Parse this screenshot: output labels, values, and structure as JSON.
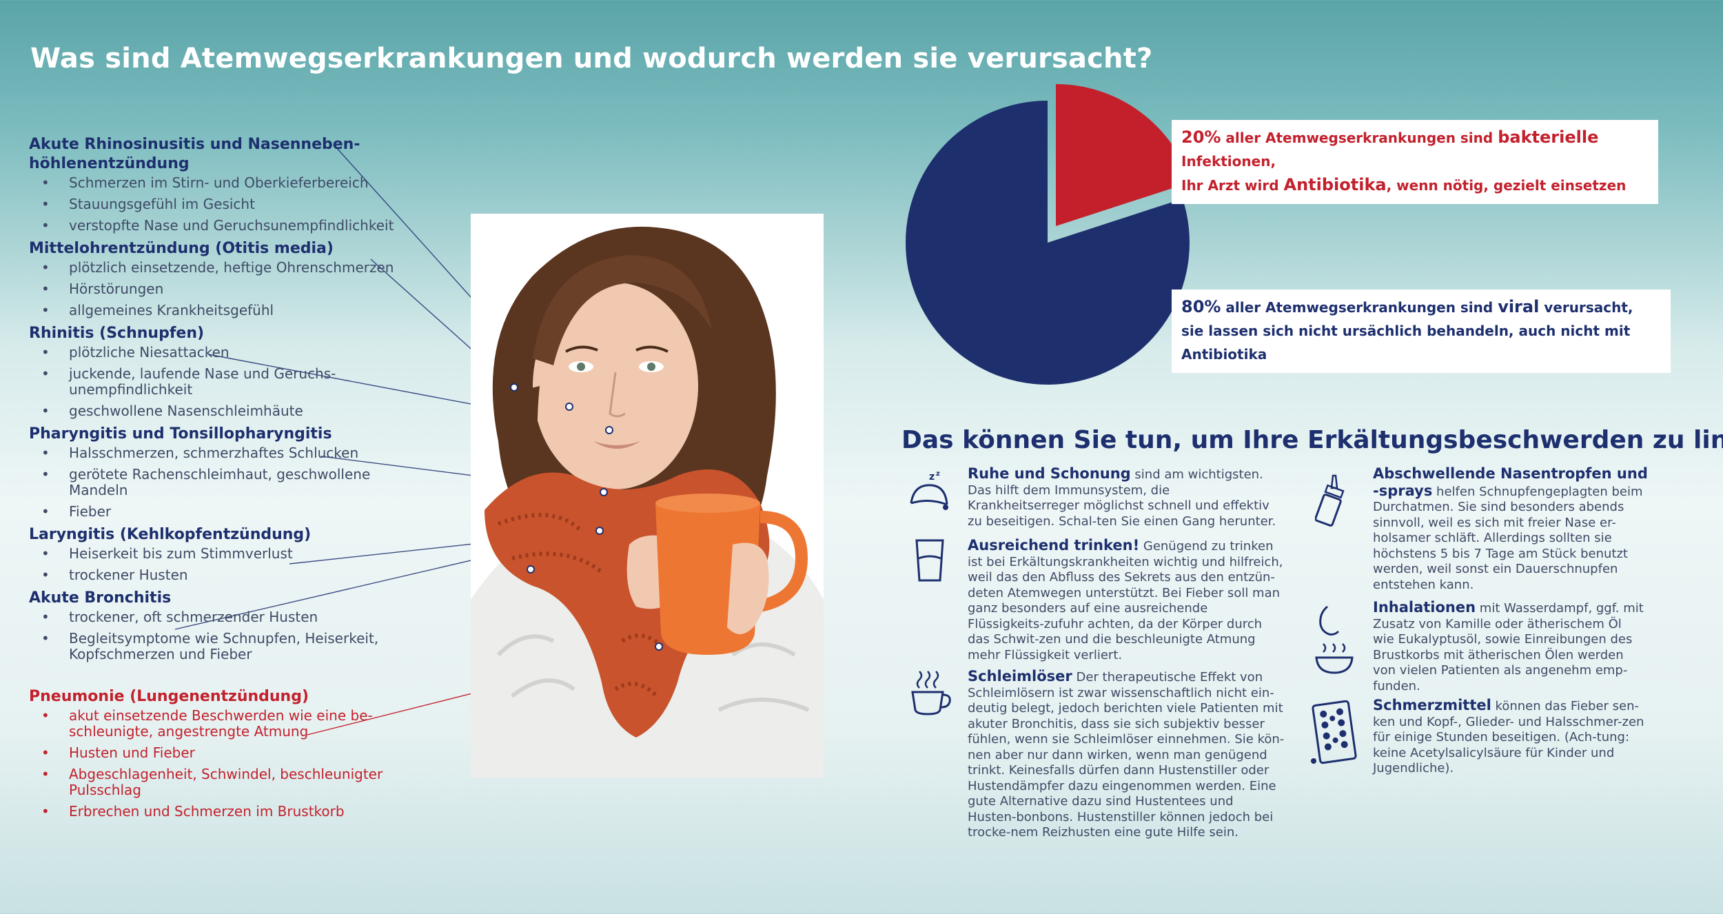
{
  "title": "Was sind Atemwegserkrankungen und wodurch werden sie verursacht?",
  "conditions": [
    {
      "title": "Akute Rhinosinusitis und Nasenneben-\nhöhlenentzündung",
      "items": [
        "Schmerzen im Stirn- und Oberkieferbereich",
        "Stauungsgefühl im Gesicht",
        "verstopfte Nase und Geruchsunempfindlichkeit"
      ]
    },
    {
      "title": "Mittelohrentzündung (Otitis media)",
      "items": [
        "plötzlich einsetzende, heftige Ohrenschmerzen",
        "Hörstörungen",
        "allgemeines Krankheitsgefühl"
      ]
    },
    {
      "title": "Rhinitis (Schnupfen)",
      "items": [
        "plötzliche Niesattacken",
        "juckende, laufende Nase und Geruchs-\nunempfindlichkeit",
        "geschwollene Nasenschleimhäute"
      ]
    },
    {
      "title": "Pharyngitis und Tonsillopharyngitis",
      "items": [
        "Halsschmerzen, schmerzhaftes Schlucken",
        "gerötete Rachenschleimhaut, geschwollene\nMandeln",
        "Fieber"
      ]
    },
    {
      "title": "Laryngitis (Kehlkopfentzündung)",
      "items": [
        "Heiserkeit bis zum Stimmverlust",
        "trockener Husten"
      ]
    },
    {
      "title": "Akute Bronchitis",
      "items": [
        "trockener, oft schmerzender Husten",
        "Begleitsymptome wie Schnupfen, Heiserkeit,\nKopfschmerzen und Fieber"
      ]
    },
    {
      "title": "Pneumonie (Lungenentzündung)",
      "items": [
        "akut einsetzende Beschwerden wie eine be-\nschleunigte, angestrengte Atmung",
        "Husten und Fieber",
        "Abgeschlagenheit, Schwindel, beschleunigter\nPulsschlag",
        "Erbrechen und Schmerzen im Brustkorb"
      ]
    }
  ],
  "chart_data": {
    "type": "pie",
    "title": "",
    "slices": [
      {
        "label": "bakterielle",
        "value": 20,
        "color": "#c3202c"
      },
      {
        "label": "viral",
        "value": 80,
        "color": "#1e2f6e"
      }
    ]
  },
  "pie_colors": {
    "bacterial": "#c3202c",
    "viral": "#1e2f6e"
  },
  "bacterial_callout": {
    "pct": "20%",
    "pre": " aller Atemwegserkrankungen sind ",
    "key": "bakterielle",
    "post": " Infektionen,",
    "line2_pre": "Ihr Arzt wird ",
    "line2_key": "Antibiotika",
    "line2_post": ", wenn nötig, gezielt einsetzen"
  },
  "viral_callout": {
    "pct": "80%",
    "pre": " aller Atemwegserkrankungen sind ",
    "key": "viral",
    "post": " verursacht,",
    "line2": "sie lassen sich nicht ursächlich behandeln, auch nicht mit Antibiotika"
  },
  "tips_title": "Das können Sie tun, um Ihre Erkältungsbeschwerden zu lindern:",
  "tips": {
    "rest": {
      "title": "Ruhe und Schonung",
      "text": " sind am wichtigsten. Das hilft dem Immunsystem, die Krankheitserreger möglichst schnell und effektiv zu beseitigen. Schal-ten Sie einen Gang herunter.",
      "icon": "sleeping-hat-icon"
    },
    "drink": {
      "title": "Ausreichend trinken!",
      "text": " Genügend zu trinken ist bei Erkältungskrankheiten wichtig und hilfreich, weil das den Abfluss des Sekrets aus den entzün-deten Atemwegen unterstützt. Bei Fieber soll man ganz besonders auf eine ausreichende Flüssigkeits-zufuhr achten, da der Körper durch das Schwit-zen und die beschleunigte Atmung mehr Flüssigkeit verliert.",
      "icon": "water-glass-icon"
    },
    "mucus": {
      "title": "Schleimlöser",
      "text": " Der therapeutische Effekt von Schleimlösern ist zwar wissenschaftlich nicht ein-deutig belegt, jedoch berichten viele Patienten mit akuter Bronchitis, dass sie sich subjektiv besser fühlen, wenn sie Schleimlöser einnehmen. Sie kön-nen aber nur dann wirken, wenn man genügend trinkt. Keinesfalls dürfen dann Hustenstiller oder Hustendämpfer dazu eingenommen werden. Eine gute Alternative dazu sind Hustentees und Husten-bonbons. Hustenstiller können jedoch bei trocke-nem Reizhusten eine gute Hilfe sein.",
      "icon": "hot-cup-icon"
    },
    "spray": {
      "title": "Abschwellende Nasentropfen und -sprays",
      "text": " helfen Schnupfengeplagten beim Durchatmen. Sie sind besonders abends sinnvoll, weil es sich mit freier Nase er-holsamer schläft. Allerdings sollten sie höchstens 5 bis 7 Tage am Stück benutzt werden, weil sonst ein Dauerschnupfen entstehen kann.",
      "icon": "nasal-spray-icon"
    },
    "inhale": {
      "title": "Inhalationen",
      "text": " mit Wasserdampf, ggf. mit Zusatz von Kamille oder ätherischem Öl wie Eukalyptusöl, sowie Einreibungen des Brustkorbs mit ätherischen Ölen werden von vielen Patienten als angenehm emp-funden.",
      "icon": "inhalation-bowl-icon"
    },
    "pain": {
      "title": "Schmerzmittel",
      "text": " können das Fieber sen-ken und Kopf-, Glieder- und Halsschmer-zen für einige Stunden beseitigen. (Ach-tung: keine Acetylsalicylsäure für Kinder und Jugendliche).",
      "icon": "pill-blister-icon"
    }
  }
}
